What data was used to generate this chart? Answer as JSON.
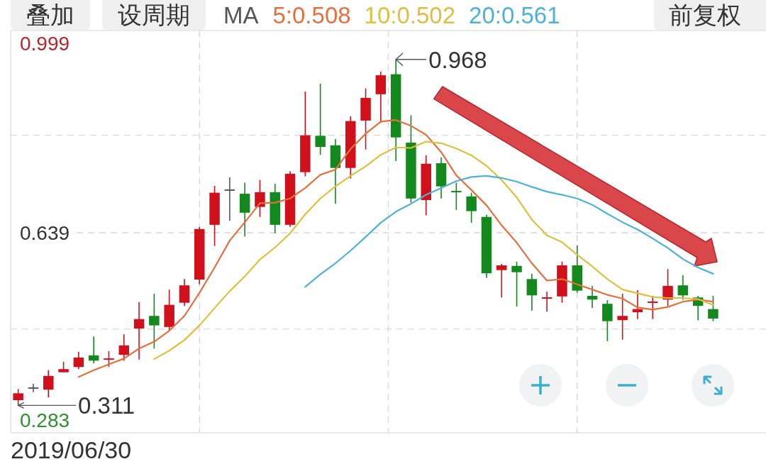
{
  "chart_data": {
    "type": "candlestick",
    "legend_title": "MA",
    "legend": "top",
    "grid": true,
    "categories": [
      null,
      null,
      null,
      null,
      null,
      null,
      null,
      null,
      null,
      null,
      null,
      null,
      null,
      null,
      null,
      null,
      null,
      null,
      null,
      null,
      null,
      null,
      null,
      null,
      null,
      null,
      null,
      null,
      null,
      null,
      null,
      null,
      null,
      null,
      null,
      null,
      null,
      null,
      null,
      null,
      null,
      null,
      null,
      null,
      null,
      null,
      null,
      null,
      null,
      null
    ],
    "ohlc": [
      [
        0.321,
        0.342,
        0.311,
        0.334
      ],
      [
        0.344,
        0.352,
        0.336,
        0.344
      ],
      [
        0.341,
        0.378,
        0.326,
        0.367
      ],
      [
        0.374,
        0.394,
        0.374,
        0.38
      ],
      [
        0.384,
        0.413,
        0.38,
        0.402
      ],
      [
        0.406,
        0.442,
        0.391,
        0.396
      ],
      [
        0.399,
        0.414,
        0.384,
        0.399
      ],
      [
        0.407,
        0.446,
        0.396,
        0.425
      ],
      [
        0.457,
        0.507,
        0.398,
        0.475
      ],
      [
        0.481,
        0.523,
        0.419,
        0.463
      ],
      [
        0.46,
        0.531,
        0.452,
        0.502
      ],
      [
        0.506,
        0.551,
        0.5,
        0.539
      ],
      [
        0.55,
        0.65,
        0.541,
        0.646
      ],
      [
        0.654,
        0.728,
        0.614,
        0.715
      ],
      [
        0.72,
        0.744,
        0.662,
        0.72
      ],
      [
        0.713,
        0.734,
        0.632,
        0.677
      ],
      [
        0.688,
        0.739,
        0.669,
        0.716
      ],
      [
        0.716,
        0.732,
        0.638,
        0.654
      ],
      [
        0.654,
        0.756,
        0.65,
        0.751
      ],
      [
        0.754,
        0.907,
        0.746,
        0.824
      ],
      [
        0.823,
        0.922,
        0.787,
        0.802
      ],
      [
        0.805,
        0.817,
        0.694,
        0.762
      ],
      [
        0.762,
        0.86,
        0.742,
        0.851
      ],
      [
        0.852,
        0.913,
        0.797,
        0.895
      ],
      [
        0.902,
        0.945,
        0.848,
        0.938
      ],
      [
        0.94,
        0.968,
        0.775,
        0.82
      ],
      [
        0.81,
        0.862,
        0.696,
        0.704
      ],
      [
        0.701,
        0.786,
        0.672,
        0.77
      ],
      [
        0.771,
        0.782,
        0.704,
        0.727
      ],
      [
        0.717,
        0.734,
        0.682,
        0.717
      ],
      [
        0.708,
        0.715,
        0.658,
        0.68
      ],
      [
        0.669,
        0.673,
        0.553,
        0.562
      ],
      [
        0.568,
        0.58,
        0.516,
        0.577
      ],
      [
        0.576,
        0.584,
        0.499,
        0.564
      ],
      [
        0.551,
        0.561,
        0.491,
        0.52
      ],
      [
        0.515,
        0.527,
        0.489,
        0.515
      ],
      [
        0.518,
        0.584,
        0.506,
        0.577
      ],
      [
        0.577,
        0.615,
        0.525,
        0.529
      ],
      [
        0.519,
        0.538,
        0.496,
        0.512
      ],
      [
        0.504,
        0.511,
        0.433,
        0.471
      ],
      [
        0.473,
        0.523,
        0.436,
        0.481
      ],
      [
        0.488,
        0.53,
        0.475,
        0.494
      ],
      [
        0.506,
        0.519,
        0.475,
        0.508
      ],
      [
        0.512,
        0.57,
        0.5,
        0.538
      ],
      [
        0.539,
        0.558,
        0.512,
        0.52
      ],
      [
        0.516,
        0.519,
        0.473,
        0.5
      ],
      [
        0.494,
        0.519,
        0.471,
        0.476
      ],
      null,
      null,
      null
    ],
    "colors": [
      "#d0101b",
      "#555555",
      "#d0101b",
      "#d0101b",
      "#d0101b",
      "#13891d",
      "#d0101b",
      "#d0101b",
      "#d0101b",
      "#13891d",
      "#d0101b",
      "#d0101b",
      "#d0101b",
      "#d0101b",
      "#555555",
      "#13891d",
      "#d0101b",
      "#13891d",
      "#d0101b",
      "#d0101b",
      "#13891d",
      "#13891d",
      "#d0101b",
      "#d0101b",
      "#d0101b",
      "#13891d",
      "#13891d",
      "#d0101b",
      "#13891d",
      "#13891d",
      "#13891d",
      "#13891d",
      "#d0101b",
      "#13891d",
      "#13891d",
      "#d0101b",
      "#d0101b",
      "#13891d",
      "#13891d",
      "#13891d",
      "#d0101b",
      "#d0101b",
      "#d0101b",
      "#d0101b",
      "#13891d",
      "#13891d",
      "#13891d",
      null,
      null,
      null
    ],
    "series": [
      {
        "name": "5:0.508",
        "type": "line",
        "color": "#e4703e",
        "values": [
          null,
          null,
          null,
          null,
          0.365,
          0.378,
          0.389,
          0.4,
          0.419,
          0.432,
          0.453,
          0.481,
          0.525,
          0.573,
          0.624,
          0.659,
          0.695,
          0.696,
          0.704,
          0.724,
          0.749,
          0.759,
          0.798,
          0.827,
          0.85,
          0.853,
          0.842,
          0.825,
          0.792,
          0.748,
          0.72,
          0.691,
          0.653,
          0.62,
          0.581,
          0.548,
          0.551,
          0.541,
          0.531,
          0.521,
          0.514,
          0.497,
          0.493,
          0.498,
          0.508,
          0.512,
          0.508,
          null,
          null,
          null
        ]
      },
      {
        "name": "10:0.502",
        "type": "line",
        "color": "#dcc03e",
        "values": [
          null,
          null,
          null,
          null,
          null,
          null,
          null,
          null,
          null,
          0.399,
          0.415,
          0.435,
          0.463,
          0.496,
          0.528,
          0.556,
          0.588,
          0.611,
          0.638,
          0.674,
          0.704,
          0.727,
          0.747,
          0.765,
          0.787,
          0.801,
          0.8,
          0.812,
          0.809,
          0.799,
          0.786,
          0.766,
          0.739,
          0.706,
          0.664,
          0.634,
          0.621,
          0.597,
          0.575,
          0.551,
          0.531,
          0.524,
          0.517,
          0.515,
          0.515,
          0.513,
          0.502,
          null,
          null,
          null
        ]
      },
      {
        "name": "20:0.561",
        "type": "line",
        "color": "#4db2d4",
        "values": [
          null,
          null,
          null,
          null,
          null,
          null,
          null,
          null,
          null,
          null,
          null,
          null,
          null,
          null,
          null,
          null,
          null,
          null,
          null,
          0.536,
          0.56,
          0.581,
          0.605,
          0.631,
          0.658,
          0.679,
          0.694,
          0.711,
          0.724,
          0.737,
          0.745,
          0.747,
          0.743,
          0.736,
          0.726,
          0.717,
          0.711,
          0.704,
          0.692,
          0.675,
          0.659,
          0.645,
          0.628,
          0.61,
          0.589,
          0.573,
          0.561,
          null,
          null,
          null
        ]
      }
    ],
    "ylim": [
      0.259,
      1.023
    ],
    "yticks": [
      0.283,
      {
        "value": 0.456,
        "label": null
      },
      0.639,
      {
        "value": 0.824,
        "label": null
      },
      0.999
    ],
    "annotations": [
      "0.968",
      "0.311",
      "2019/06/30",
      "叠加",
      "设周期",
      "前复权"
    ]
  }
}
